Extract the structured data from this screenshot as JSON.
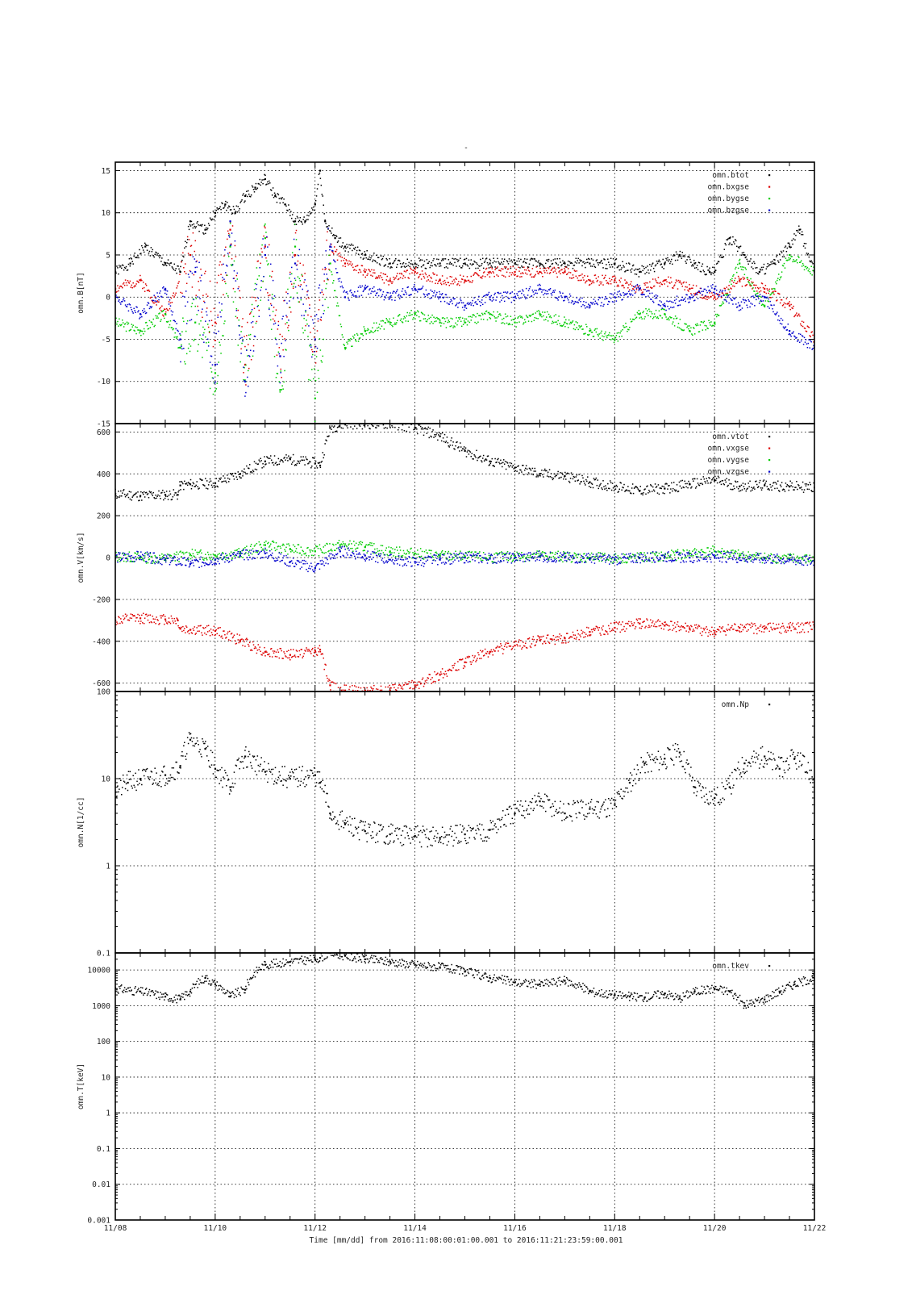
{
  "figure": {
    "title": "-",
    "time_axis": {
      "xlabel": "Time [mm/dd]  from 2016:11:08:00:01:00.001  to  2016:11:21:23:59:00.001",
      "tick_labels": [
        "11/08",
        "11/10",
        "11/12",
        "11/14",
        "11/16",
        "11/18",
        "11/20",
        "11/22"
      ],
      "range_days": [
        0,
        14
      ]
    }
  },
  "colors": {
    "black": "#000000",
    "red": "#dd0000",
    "green": "#00cc00",
    "blue": "#0000cc"
  },
  "chart_data": [
    {
      "type": "scatter",
      "ylabel": "omn.B[nT]",
      "ylim": [
        -15,
        16
      ],
      "yticks": [
        -15,
        -10,
        -5,
        0,
        5,
        10,
        15
      ],
      "grid": true,
      "legend_position": "top-right",
      "series": [
        {
          "name": "omn.btot",
          "color": "#000000",
          "x": [
            0,
            0.3,
            0.6,
            1,
            1.3,
            1.5,
            1.8,
            2,
            2.2,
            2.4,
            2.6,
            2.8,
            3,
            3.2,
            3.4,
            3.6,
            3.8,
            4,
            4.1,
            4.2,
            4.4,
            4.6,
            5,
            5.5,
            6,
            6.5,
            7,
            7.5,
            8,
            8.5,
            9,
            9.5,
            10,
            10.5,
            11,
            11.3,
            11.6,
            11.9,
            12,
            12.3,
            12.6,
            12.9,
            13.2,
            13.5,
            13.7,
            14
          ],
          "y": [
            3,
            4,
            6,
            4,
            3,
            9,
            8,
            10,
            11,
            10,
            12,
            13,
            14,
            12,
            11,
            9,
            9,
            11,
            15,
            9,
            7,
            6,
            5,
            4,
            4,
            4,
            4,
            4,
            4,
            4,
            4,
            4,
            4,
            3,
            4,
            5,
            4,
            3,
            3,
            7,
            5,
            3,
            4,
            6,
            8,
            3
          ]
        },
        {
          "name": "omn.bxgse",
          "color": "#dd0000",
          "x": [
            0,
            0.5,
            1,
            1.5,
            2,
            2.3,
            2.6,
            3,
            3.3,
            3.6,
            4,
            4.3,
            4.6,
            5,
            5.5,
            6,
            6.5,
            7,
            7.5,
            8,
            8.5,
            9,
            9.5,
            10,
            10.5,
            11,
            11.5,
            12,
            12.5,
            13,
            13.5,
            14
          ],
          "y": [
            1,
            2,
            -2,
            5,
            -3,
            8,
            -8,
            6,
            -7,
            5,
            -5,
            6,
            4,
            3,
            2,
            3,
            2,
            2,
            3,
            3,
            3,
            3,
            2,
            2,
            1,
            2,
            1,
            0,
            2,
            1,
            -1,
            -5
          ]
        },
        {
          "name": "omn.bygse",
          "color": "#00cc00",
          "x": [
            0,
            0.5,
            1,
            1.3,
            1.6,
            2,
            2.3,
            2.6,
            3,
            3.3,
            3.6,
            4,
            4.3,
            4.6,
            5,
            5.5,
            6,
            6.5,
            7,
            7.5,
            8,
            8.5,
            9,
            9.5,
            10,
            10.5,
            11,
            11.5,
            12,
            12.5,
            13,
            13.5,
            14
          ],
          "y": [
            -3,
            -4,
            -2,
            -6,
            -3,
            -9,
            6,
            -10,
            7,
            -11,
            6,
            -12,
            4,
            -6,
            -4,
            -3,
            -2,
            -3,
            -3,
            -2,
            -3,
            -2,
            -3,
            -4,
            -5,
            -2,
            -2,
            -4,
            -3,
            4,
            -1,
            5,
            3
          ]
        },
        {
          "name": "omn.bzgse",
          "color": "#0000cc",
          "x": [
            0,
            0.5,
            1,
            1.3,
            1.6,
            2,
            2.3,
            2.6,
            3,
            3.3,
            3.6,
            4,
            4.3,
            4.6,
            5,
            5.5,
            6,
            6.5,
            7,
            7.5,
            8,
            8.5,
            9,
            9.5,
            10,
            10.5,
            11,
            11.5,
            12,
            12.5,
            13,
            13.5,
            14
          ],
          "y": [
            0,
            -2,
            1,
            -5,
            3,
            -8,
            9,
            -10,
            5,
            -7,
            4,
            -5,
            6,
            0,
            1,
            0,
            1,
            0,
            -1,
            0,
            0,
            1,
            0,
            -1,
            0,
            1,
            -1,
            0,
            1,
            -1,
            0,
            -4,
            -6
          ]
        }
      ]
    },
    {
      "type": "scatter",
      "ylabel": "omn.V[km/s]",
      "ylim": [
        -640,
        640
      ],
      "yticks": [
        -600,
        -400,
        -200,
        0,
        200,
        400,
        600
      ],
      "grid": true,
      "legend_position": "top-right",
      "series": [
        {
          "name": "omn.vtot",
          "color": "#000000",
          "x": [
            0,
            0.5,
            1,
            1.25,
            1.3,
            1.5,
            2,
            2.5,
            3,
            3.5,
            4,
            4.1,
            4.3,
            4.6,
            5,
            5.5,
            6,
            6.5,
            7,
            7.5,
            8,
            8.5,
            9,
            9.5,
            10,
            10.5,
            11,
            11.5,
            12,
            12.5,
            13,
            13.5,
            14
          ],
          "y": [
            305,
            295,
            300,
            300,
            345,
            350,
            355,
            400,
            460,
            470,
            450,
            440,
            620,
            640,
            640,
            640,
            620,
            580,
            510,
            460,
            430,
            400,
            390,
            360,
            340,
            320,
            330,
            350,
            370,
            340,
            345,
            340,
            335
          ]
        },
        {
          "name": "omn.vxgse",
          "color": "#dd0000",
          "x": [
            0,
            0.5,
            1,
            1.25,
            1.3,
            1.5,
            2,
            2.5,
            3,
            3.5,
            4,
            4.1,
            4.3,
            4.6,
            5,
            5.5,
            6,
            6.5,
            7,
            7.5,
            8,
            8.5,
            9,
            9.5,
            10,
            10.5,
            11,
            11.5,
            12,
            12.5,
            13,
            13.5,
            14
          ],
          "y": [
            -300,
            -290,
            -295,
            -300,
            -340,
            -345,
            -350,
            -395,
            -450,
            -465,
            -445,
            -440,
            -610,
            -635,
            -635,
            -635,
            -610,
            -560,
            -500,
            -450,
            -420,
            -395,
            -385,
            -355,
            -335,
            -315,
            -325,
            -340,
            -360,
            -335,
            -340,
            -335,
            -330
          ]
        },
        {
          "name": "omn.vygse",
          "color": "#00cc00",
          "x": [
            0,
            0.5,
            1,
            1.5,
            2,
            2.5,
            3,
            3.5,
            4,
            4.5,
            5,
            5.5,
            6,
            6.5,
            7,
            7.5,
            8,
            8.5,
            9,
            9.5,
            10,
            10.5,
            11,
            11.5,
            12,
            12.5,
            13,
            13.5,
            14
          ],
          "y": [
            5,
            0,
            -5,
            15,
            10,
            20,
            60,
            40,
            30,
            60,
            50,
            30,
            20,
            10,
            5,
            0,
            5,
            10,
            5,
            0,
            -5,
            0,
            5,
            20,
            30,
            10,
            0,
            -5,
            -10
          ]
        },
        {
          "name": "omn.vzgse",
          "color": "#0000cc",
          "x": [
            0,
            0.5,
            1,
            1.5,
            2,
            2.5,
            3,
            3.5,
            4,
            4.5,
            5,
            5.5,
            6,
            6.5,
            7,
            7.5,
            8,
            8.5,
            9,
            9.5,
            10,
            10.5,
            11,
            11.5,
            12,
            12.5,
            13,
            13.5,
            14
          ],
          "y": [
            0,
            5,
            -10,
            -30,
            -10,
            10,
            20,
            -20,
            -50,
            30,
            10,
            -10,
            -20,
            -10,
            0,
            -5,
            0,
            5,
            0,
            -5,
            -10,
            0,
            5,
            0,
            5,
            0,
            -5,
            -10,
            -20
          ]
        }
      ]
    },
    {
      "type": "scatter",
      "ylabel": "omn.N[1/cc]",
      "yscale": "log",
      "ylim": [
        0.1,
        100
      ],
      "yticks": [
        0.1,
        1,
        10,
        100
      ],
      "grid": true,
      "legend_position": "top-right",
      "series": [
        {
          "name": "omn.Np",
          "color": "#000000",
          "x": [
            0,
            0.25,
            0.5,
            1,
            1.3,
            1.5,
            1.8,
            2,
            2.3,
            2.6,
            3,
            3.5,
            4,
            4.1,
            4.3,
            4.6,
            5,
            5.5,
            6,
            6.5,
            7,
            7.5,
            8,
            8.5,
            9,
            9.5,
            10,
            10.3,
            10.6,
            11,
            11.3,
            11.6,
            12,
            12.3,
            12.6,
            13,
            13.3,
            13.6,
            14
          ],
          "y": [
            7,
            9,
            10,
            11,
            14,
            28,
            22,
            13,
            8,
            18,
            12,
            10,
            11,
            9,
            4,
            3,
            2.5,
            2.3,
            2.2,
            2.1,
            2.3,
            2.6,
            4,
            5.5,
            4,
            4.5,
            5,
            9,
            15,
            17,
            20,
            8,
            6,
            8,
            15,
            18,
            13,
            17,
            10
          ]
        }
      ]
    },
    {
      "type": "scatter",
      "ylabel": "omn.T[keV]",
      "yscale": "log",
      "ylim": [
        0.001,
        30000
      ],
      "yticks": [
        0.001,
        0.01,
        0.1,
        1,
        10,
        100,
        1000,
        10000
      ],
      "ytick_labels": [
        "0.001",
        "0.01",
        "0.1",
        "1",
        "10",
        "100",
        "1000",
        "10000"
      ],
      "grid": true,
      "legend_position": "top-right",
      "series": [
        {
          "name": "omn.tkev",
          "color": "#000000",
          "x": [
            0,
            0.5,
            1,
            1.3,
            1.5,
            1.8,
            2,
            2.3,
            2.6,
            3,
            3.5,
            4,
            4.1,
            4.3,
            4.6,
            5,
            5.5,
            6,
            6.5,
            7,
            7.5,
            8,
            8.5,
            9,
            9.5,
            10,
            10.3,
            10.6,
            11,
            11.3,
            11.6,
            12,
            12.3,
            12.6,
            13,
            13.3,
            13.6,
            14
          ],
          "y": [
            3000,
            2500,
            1800,
            1500,
            2500,
            6000,
            4000,
            1800,
            2800,
            14000,
            17000,
            20000,
            22000,
            30000,
            25000,
            20000,
            17000,
            14000,
            12000,
            9000,
            6000,
            4500,
            4000,
            5000,
            2500,
            2000,
            1800,
            1700,
            2200,
            1600,
            2500,
            3000,
            2500,
            1000,
            1500,
            2500,
            4000,
            6000
          ]
        }
      ]
    }
  ]
}
